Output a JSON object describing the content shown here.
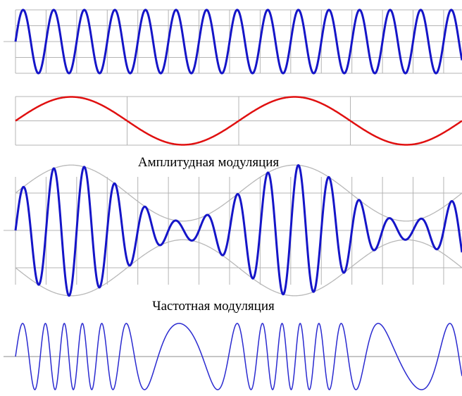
{
  "captions": {
    "am": "Амплитудная модуляция",
    "fm": "Частотная модуляция"
  },
  "colors": {
    "carrier": "#1515c8",
    "message": "#e01010",
    "am_signal": "#1515c8",
    "envelope": "#b8b8b8",
    "fm_signal": "#2a2ad0",
    "grid": "#b4b4b4",
    "axis": "#8c8c8c"
  },
  "chart_data": [
    {
      "type": "line",
      "series": [
        {
          "role": "carrier",
          "function": "sin",
          "cycles": 14.6,
          "phase": 0
        }
      ],
      "grid": true
    },
    {
      "type": "line",
      "series": [
        {
          "role": "message",
          "function": "sin",
          "cycles": 2,
          "phase": 0
        }
      ],
      "grid": true
    },
    {
      "type": "line",
      "series": [
        {
          "role": "am_signal",
          "carrier_cycles": 14.6,
          "message_cycles": 2,
          "modulation_index": 0.75
        },
        {
          "role": "envelope"
        }
      ],
      "grid": true
    },
    {
      "type": "line",
      "series": [
        {
          "role": "fm_signal",
          "carrier_cycles": 14.6,
          "message_cycles": 2,
          "frequency_deviation": 0.7
        }
      ],
      "grid": false
    }
  ]
}
